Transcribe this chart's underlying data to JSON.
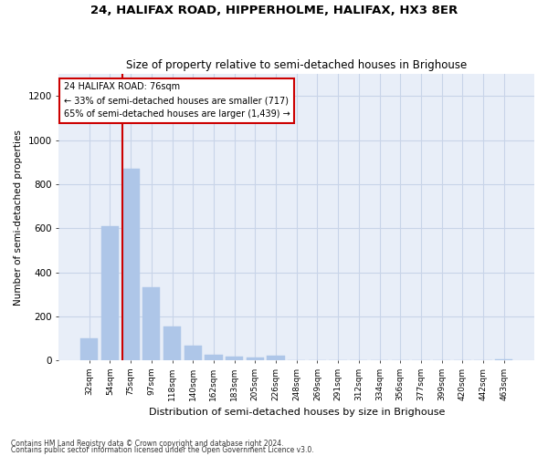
{
  "title": "24, HALIFAX ROAD, HIPPERHOLME, HALIFAX, HX3 8ER",
  "subtitle": "Size of property relative to semi-detached houses in Brighouse",
  "xlabel": "Distribution of semi-detached houses by size in Brighouse",
  "ylabel": "Number of semi-detached properties",
  "categories": [
    "32sqm",
    "54sqm",
    "75sqm",
    "97sqm",
    "118sqm",
    "140sqm",
    "162sqm",
    "183sqm",
    "205sqm",
    "226sqm",
    "248sqm",
    "269sqm",
    "291sqm",
    "312sqm",
    "334sqm",
    "356sqm",
    "377sqm",
    "399sqm",
    "420sqm",
    "442sqm",
    "463sqm"
  ],
  "values": [
    100,
    610,
    870,
    330,
    155,
    65,
    25,
    18,
    13,
    20,
    0,
    0,
    0,
    0,
    0,
    0,
    0,
    0,
    0,
    0,
    5
  ],
  "bar_color": "#aec6e8",
  "bar_edge_color": "#aec6e8",
  "grid_color": "#c8d4e8",
  "background_color": "#e8eef8",
  "marker_bar_index": 2,
  "marker_label": "24 HALIFAX ROAD: 76sqm",
  "marker_line_color": "#cc0000",
  "annotation_smaller": "← 33% of semi-detached houses are smaller (717)",
  "annotation_larger": "65% of semi-detached houses are larger (1,439) →",
  "annotation_box_color": "#ffffff",
  "annotation_box_edge": "#cc0000",
  "ylim": [
    0,
    1300
  ],
  "yticks": [
    0,
    200,
    400,
    600,
    800,
    1000,
    1200
  ],
  "footnote1": "Contains HM Land Registry data © Crown copyright and database right 2024.",
  "footnote2": "Contains public sector information licensed under the Open Government Licence v3.0."
}
